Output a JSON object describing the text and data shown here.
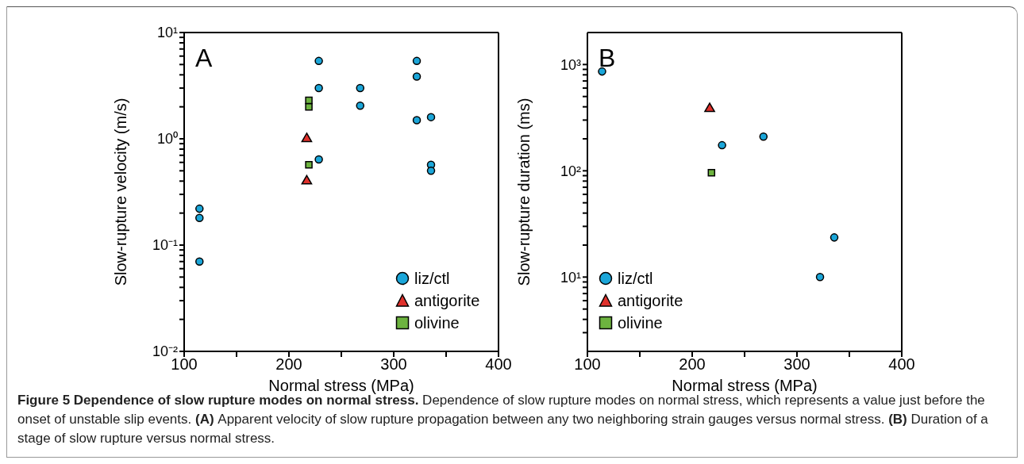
{
  "chart_data": [
    {
      "type": "scatter",
      "title": "A",
      "xlabel": "Normal stress (MPa)",
      "ylabel": "Slow-rupture velocity (m/s)",
      "log": "y",
      "xlim": [
        100,
        400
      ],
      "xticks": [
        100,
        {
          "value": 150,
          "label": null
        },
        200,
        {
          "value": 250,
          "label": null
        },
        300,
        {
          "value": 350,
          "label": null
        },
        400
      ],
      "ylim": [
        0.01,
        10
      ],
      "yticks": [
        {
          "value": 0.01,
          "label": "10⁻²"
        },
        {
          "value": 0.02,
          "label": null
        },
        {
          "value": 0.03,
          "label": null
        },
        {
          "value": 0.04,
          "label": null
        },
        {
          "value": 0.05,
          "label": null
        },
        {
          "value": 0.06,
          "label": null
        },
        {
          "value": 0.07,
          "label": null
        },
        {
          "value": 0.08,
          "label": null
        },
        {
          "value": 0.09,
          "label": null
        },
        {
          "value": 0.1,
          "label": "10⁻¹"
        },
        {
          "value": 0.2,
          "label": null
        },
        {
          "value": 0.3,
          "label": null
        },
        {
          "value": 0.4,
          "label": null
        },
        {
          "value": 0.5,
          "label": null
        },
        {
          "value": 0.6,
          "label": null
        },
        {
          "value": 0.7,
          "label": null
        },
        {
          "value": 0.8,
          "label": null
        },
        {
          "value": 0.9,
          "label": null
        },
        {
          "value": 1,
          "label": "10⁰"
        },
        {
          "value": 2,
          "label": null
        },
        {
          "value": 3,
          "label": null
        },
        {
          "value": 4,
          "label": null
        },
        {
          "value": 5,
          "label": null
        },
        {
          "value": 6,
          "label": null
        },
        {
          "value": 7,
          "label": null
        },
        {
          "value": 8,
          "label": null
        },
        {
          "value": 9,
          "label": null
        },
        {
          "value": 10,
          "label": "10¹"
        }
      ],
      "legend": "bottom right",
      "grid": false,
      "series": [
        {
          "name": "liz/ctl",
          "color": "#1ba6d9",
          "marker": "circle",
          "x": [
            114.6,
            114.6,
            114.6,
            228.5,
            228.5,
            228.5,
            268,
            268,
            322,
            322,
            322,
            335.6,
            335.6,
            335.6
          ],
          "values": [
            0.22,
            0.18,
            0.07,
            5.4,
            3.0,
            0.64,
            3.0,
            2.05,
            5.4,
            3.85,
            1.5,
            1.6,
            0.57,
            0.5
          ]
        },
        {
          "name": "antigorite",
          "color": "#e0312c",
          "marker": "triangle",
          "x": [
            217,
            217
          ],
          "values": [
            1.0,
            0.4
          ]
        },
        {
          "name": "olivine",
          "color": "#6db33f",
          "marker": "square",
          "x": [
            219,
            219,
            219
          ],
          "values": [
            2.3,
            2.0,
            0.57
          ]
        }
      ],
      "annotations": [
        "Figure 5 Dependence of slow rupture modes on normal stress.",
        "Dependence of slow rupture modes on normal stress, which represents a value just before the onset of unstable slip events.",
        "(A)",
        "Apparent velocity of slow rupture propagation between any two neighboring strain gauges versus normal stress.",
        "(B)",
        "Duration of a stage of slow rupture versus normal stress."
      ]
    },
    {
      "type": "scatter",
      "title": "B",
      "xlabel": "Normal stress (MPa)",
      "ylabel": "Slow-rupture duration (ms)",
      "log": "y",
      "xlim": [
        100,
        400
      ],
      "xticks": [
        100,
        {
          "value": 150,
          "label": null
        },
        200,
        {
          "value": 250,
          "label": null
        },
        300,
        {
          "value": 350,
          "label": null
        },
        400
      ],
      "ylim": [
        2,
        2000
      ],
      "yticks": [
        {
          "value": 3,
          "label": null
        },
        {
          "value": 4,
          "label": null
        },
        {
          "value": 5,
          "label": null
        },
        {
          "value": 6,
          "label": null
        },
        {
          "value": 7,
          "label": null
        },
        {
          "value": 8,
          "label": null
        },
        {
          "value": 9,
          "label": null
        },
        {
          "value": 10,
          "label": "10¹"
        },
        {
          "value": 20,
          "label": null
        },
        {
          "value": 30,
          "label": null
        },
        {
          "value": 40,
          "label": null
        },
        {
          "value": 50,
          "label": null
        },
        {
          "value": 60,
          "label": null
        },
        {
          "value": 70,
          "label": null
        },
        {
          "value": 80,
          "label": null
        },
        {
          "value": 90,
          "label": null
        },
        {
          "value": 100,
          "label": "10²"
        },
        {
          "value": 200,
          "label": null
        },
        {
          "value": 300,
          "label": null
        },
        {
          "value": 400,
          "label": null
        },
        {
          "value": 500,
          "label": null
        },
        {
          "value": 600,
          "label": null
        },
        {
          "value": 700,
          "label": null
        },
        {
          "value": 800,
          "label": null
        },
        {
          "value": 900,
          "label": null
        },
        {
          "value": 1000,
          "label": "10³"
        }
      ],
      "legend": "bottom left",
      "grid": false,
      "series": [
        {
          "name": "liz/ctl",
          "color": "#1ba6d9",
          "marker": "circle",
          "x": [
            114,
            228.5,
            268,
            322,
            335.6
          ],
          "values": [
            860,
            174,
            210,
            10,
            23.6
          ]
        },
        {
          "name": "antigorite",
          "color": "#e0312c",
          "marker": "triangle",
          "x": [
            216.7
          ],
          "values": [
            384
          ]
        },
        {
          "name": "olivine",
          "color": "#6db33f",
          "marker": "square",
          "x": [
            218.4
          ],
          "values": [
            96
          ]
        }
      ]
    }
  ]
}
